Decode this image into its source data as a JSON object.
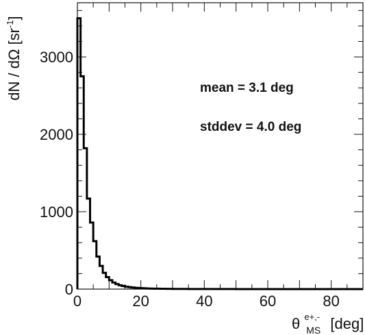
{
  "chart_data": {
    "type": "histogram",
    "title": "",
    "xlabel": {
      "symbol": "θ",
      "superscript": "e+,-",
      "subscript": "MS",
      "unit": "[deg]"
    },
    "ylabel": {
      "main": "dN / dΩ [sr",
      "superscript": "-1",
      "close": "]"
    },
    "xlim": [
      0,
      90
    ],
    "ylim": [
      0,
      3700
    ],
    "x_ticks": [
      0,
      20,
      40,
      60,
      80
    ],
    "y_ticks": [
      0,
      1000,
      2000,
      3000
    ],
    "bin_width": 1,
    "bins": [
      {
        "x": 0,
        "y": 3500
      },
      {
        "x": 1,
        "y": 2750
      },
      {
        "x": 2,
        "y": 1820
      },
      {
        "x": 3,
        "y": 1170
      },
      {
        "x": 4,
        "y": 860
      },
      {
        "x": 5,
        "y": 620
      },
      {
        "x": 6,
        "y": 420
      },
      {
        "x": 7,
        "y": 300
      },
      {
        "x": 8,
        "y": 210
      },
      {
        "x": 9,
        "y": 155
      },
      {
        "x": 10,
        "y": 115
      },
      {
        "x": 11,
        "y": 85
      },
      {
        "x": 12,
        "y": 65
      },
      {
        "x": 13,
        "y": 50
      },
      {
        "x": 14,
        "y": 40
      },
      {
        "x": 15,
        "y": 32
      },
      {
        "x": 16,
        "y": 26
      },
      {
        "x": 17,
        "y": 21
      },
      {
        "x": 18,
        "y": 17
      },
      {
        "x": 19,
        "y": 14
      },
      {
        "x": 20,
        "y": 12
      },
      {
        "x": 21,
        "y": 10
      },
      {
        "x": 22,
        "y": 8
      },
      {
        "x": 23,
        "y": 7
      },
      {
        "x": 24,
        "y": 6
      },
      {
        "x": 25,
        "y": 5
      },
      {
        "x": 26,
        "y": 4
      },
      {
        "x": 27,
        "y": 4
      },
      {
        "x": 28,
        "y": 3
      },
      {
        "x": 29,
        "y": 3
      },
      {
        "x": 30,
        "y": 2
      },
      {
        "x": 32,
        "y": 2
      },
      {
        "x": 35,
        "y": 1
      },
      {
        "x": 40,
        "y": 1
      },
      {
        "x": 50,
        "y": 0
      },
      {
        "x": 60,
        "y": 0
      },
      {
        "x": 70,
        "y": 0
      },
      {
        "x": 80,
        "y": 0
      },
      {
        "x": 89,
        "y": 0
      }
    ],
    "annotations": [
      "mean = 3.1 deg",
      "stddev = 4.0 deg"
    ],
    "grid": false,
    "legend": "none",
    "line_color": "#000000"
  }
}
